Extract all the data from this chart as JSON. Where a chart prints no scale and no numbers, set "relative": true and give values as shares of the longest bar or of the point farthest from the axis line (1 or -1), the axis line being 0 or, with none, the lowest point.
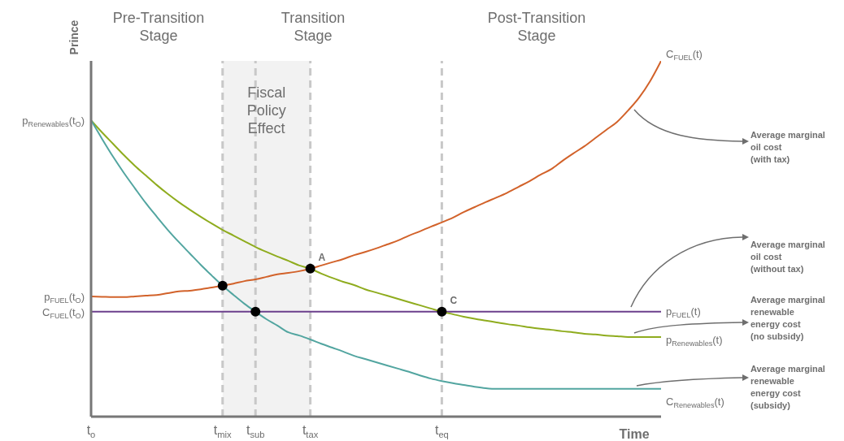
{
  "chart_data": {
    "type": "line",
    "relative": true,
    "xlabel": "Time",
    "ylabel": "Prince",
    "categories": [
      "t$_{o}$",
      null,
      null,
      null,
      null,
      null,
      null,
      null,
      null,
      null,
      null,
      null,
      "t$_{mix}$",
      null,
      null,
      "t$_{sub}$",
      null,
      null,
      null,
      null,
      "t$_{tax}$",
      null,
      null,
      null,
      null,
      null,
      null,
      null,
      null,
      null,
      null,
      null,
      "t$_{eq}$",
      null,
      null,
      null,
      null,
      null,
      null,
      null,
      null,
      null,
      null,
      null,
      null,
      null,
      null,
      null,
      null,
      null,
      null,
      null,
      null
    ],
    "series": [
      {
        "name": "C$_{FUEL}$(t)",
        "color": "#d2622a",
        "values": [
          0.338,
          0.337,
          0.336,
          0.336,
          0.338,
          0.34,
          0.342,
          0.347,
          0.352,
          0.354,
          0.358,
          0.363,
          0.368,
          0.374,
          0.381,
          0.386,
          0.393,
          0.4,
          0.404,
          0.409,
          0.416,
          0.425,
          0.434,
          0.443,
          0.454,
          0.463,
          0.473,
          0.484,
          0.495,
          0.509,
          0.521,
          0.534,
          0.546,
          0.559,
          0.575,
          0.589,
          0.603,
          0.616,
          0.63,
          0.646,
          0.662,
          0.68,
          0.696,
          0.719,
          0.74,
          0.76,
          0.783,
          0.806,
          0.829,
          0.861,
          0.897,
          0.943,
          1
        ]
      },
      {
        "name": "p$_{FUEL}$(t)",
        "color": "#6b3f8c",
        "values": [
          0.295,
          0.295,
          0.295,
          0.295,
          0.295,
          0.295,
          0.295,
          0.295,
          0.295,
          0.295,
          0.295,
          0.295,
          0.295,
          0.295,
          0.295,
          0.295,
          0.295,
          0.295,
          0.295,
          0.295,
          0.295,
          0.295,
          0.295,
          0.295,
          0.295,
          0.295,
          0.295,
          0.295,
          0.295,
          0.295,
          0.295,
          0.295,
          0.295,
          0.295,
          0.295,
          0.295,
          0.295,
          0.295,
          0.295,
          0.295,
          0.295,
          0.295,
          0.295,
          0.295,
          0.295,
          0.295,
          0.295,
          0.295,
          0.295,
          0.295,
          0.295,
          0.295,
          0.295
        ]
      },
      {
        "name": "p$_{Renewables}$(t)",
        "color": "#8fac1e",
        "values": [
          0.833,
          0.799,
          0.767,
          0.735,
          0.705,
          0.678,
          0.651,
          0.626,
          0.603,
          0.582,
          0.562,
          0.543,
          0.525,
          0.509,
          0.493,
          0.477,
          0.463,
          0.45,
          0.438,
          0.425,
          0.416,
          0.402,
          0.39,
          0.379,
          0.37,
          0.358,
          0.349,
          0.34,
          0.331,
          0.322,
          0.313,
          0.304,
          0.295,
          0.288,
          0.281,
          0.275,
          0.27,
          0.265,
          0.26,
          0.256,
          0.251,
          0.247,
          0.244,
          0.24,
          0.237,
          0.233,
          0.231,
          0.228,
          0.226,
          0.224,
          0.224,
          0.224,
          0.224
        ]
      },
      {
        "name": "C$_{Renewables}$(t)",
        "color": "#52a5a0",
        "values": [
          0.833,
          0.781,
          0.731,
          0.685,
          0.642,
          0.6,
          0.562,
          0.525,
          0.491,
          0.459,
          0.427,
          0.397,
          0.368,
          0.342,
          0.317,
          0.295,
          0.274,
          0.256,
          0.237,
          0.228,
          0.217,
          0.205,
          0.194,
          0.183,
          0.171,
          0.162,
          0.153,
          0.144,
          0.135,
          0.126,
          0.116,
          0.107,
          0.1,
          0.094,
          0.089,
          0.084,
          0.08,
          0.078,
          0.078,
          0.078,
          0.078,
          0.078,
          0.078,
          0.078,
          0.078,
          0.078,
          0.078,
          0.078,
          0.078,
          0.078,
          0.078,
          0.078,
          0.078
        ]
      },
      {
        "type": "scatter",
        "color": "#000000",
        "marker": "circle",
        "x": [
          "t$_{mix}$",
          "t$_{sub}$",
          "t$_{tax}$",
          "t$_{eq}$"
        ],
        "values": [
          0.368,
          0.295,
          0.416,
          0.295
        ]
      }
    ],
    "ref_lines": [
      {
        "axis": "x",
        "value": "t$_{mix}$",
        "color": "#c8c8c8",
        "line_style": "dashed"
      },
      {
        "axis": "x",
        "value": "t$_{sub}$",
        "color": "#c8c8c8",
        "line_style": "dashed"
      },
      {
        "axis": "x",
        "value": "t$_{tax}$",
        "color": "#c8c8c8",
        "line_style": "dashed"
      },
      {
        "axis": "x",
        "value": "t$_{eq}$",
        "color": "#c8c8c8",
        "line_style": "dashed"
      }
    ],
    "bands": [
      {
        "axis": "x",
        "from": "t$_{mix}$",
        "to": "t$_{tax}$",
        "label": "Fiscal\nPolicy\nEffect",
        "color": "#f2f2f2"
      }
    ],
    "annotations": [
      {
        "text": "p$_{Renewables}$(t$_{O}$)",
        "x": "t$_{o}$",
        "y": 0.833
      },
      {
        "text": "p$_{FUEL}$(t$_{O}$)",
        "x": "t$_{o}$",
        "y": 0.338
      },
      {
        "text": "C$_{FUEL}$(t$_{O}$)",
        "x": "t$_{o}$",
        "y": 0.295
      },
      {
        "text": "A",
        "x": "t$_{tax}$",
        "y": 0.416
      },
      {
        "text": "C",
        "x": "t$_{eq}$",
        "y": 0.295
      },
      "Pre-Transition\nStage",
      "Transition\nStage",
      "Post-Transition\nStage",
      "Average marginal\noil cost\n(with tax)",
      "Average marginal\noil cost\n(without tax)",
      "Average marginal\nrenewable\nenergy cost\n(no subsidy)",
      "Average marginal\nrenewable\nenergy cost\n(subsidy)"
    ]
  }
}
